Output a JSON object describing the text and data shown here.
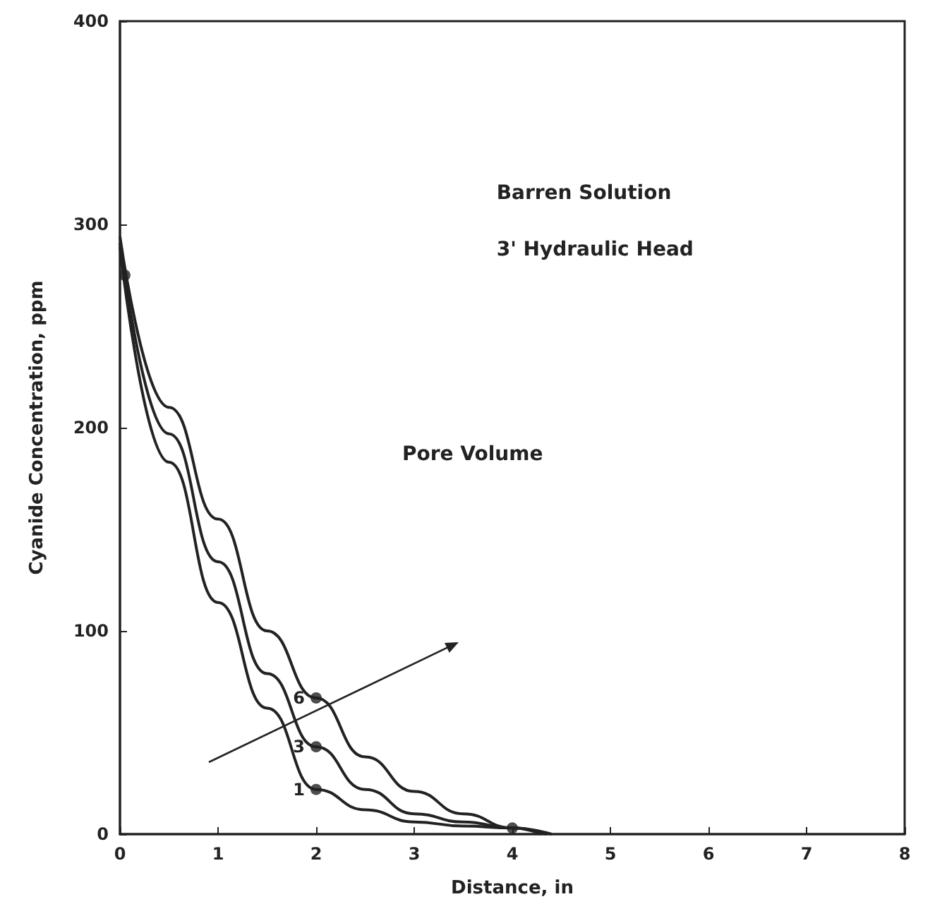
{
  "chart_data": {
    "type": "line",
    "xlabel": "Distance, in",
    "ylabel": "Cyanide Concentration, ppm",
    "xlim": [
      0,
      8
    ],
    "xticks": [
      0,
      1,
      2,
      3,
      4,
      5,
      6,
      7,
      8
    ],
    "ylim": [
      0,
      400
    ],
    "yticks": [
      0,
      100,
      200,
      300,
      400
    ],
    "grid": false,
    "legend": false,
    "marker": "none",
    "series": [
      {
        "name": "1",
        "color": "#222222",
        "x": [
          0,
          0.5,
          1,
          1.5,
          2,
          2.5,
          3,
          3.5,
          4,
          4.3
        ],
        "values": [
          289,
          183,
          114,
          62,
          22,
          12,
          6,
          4,
          3,
          0
        ]
      },
      {
        "name": "3",
        "color": "#222222",
        "x": [
          0,
          0.5,
          1,
          1.5,
          2,
          2.5,
          3,
          3.5,
          4,
          4.35
        ],
        "values": [
          291,
          197,
          134,
          79,
          43,
          22,
          10,
          6,
          3,
          0
        ]
      },
      {
        "name": "6",
        "color": "#222222",
        "x": [
          0,
          0.5,
          1,
          1.5,
          2,
          2.5,
          3,
          3.5,
          4,
          4.4
        ],
        "values": [
          294,
          210,
          155,
          100,
          67,
          38,
          21,
          10,
          3,
          0
        ]
      },
      {
        "type": "scatter",
        "marker": "circle",
        "color": "#222222",
        "x": [
          0.05,
          2,
          2,
          2,
          4
        ],
        "values": [
          275,
          22,
          43,
          67,
          3
        ]
      }
    ],
    "annotations": [
      "Barren Solution",
      "3' Hydraulic Head",
      "Pore Volume"
    ]
  }
}
